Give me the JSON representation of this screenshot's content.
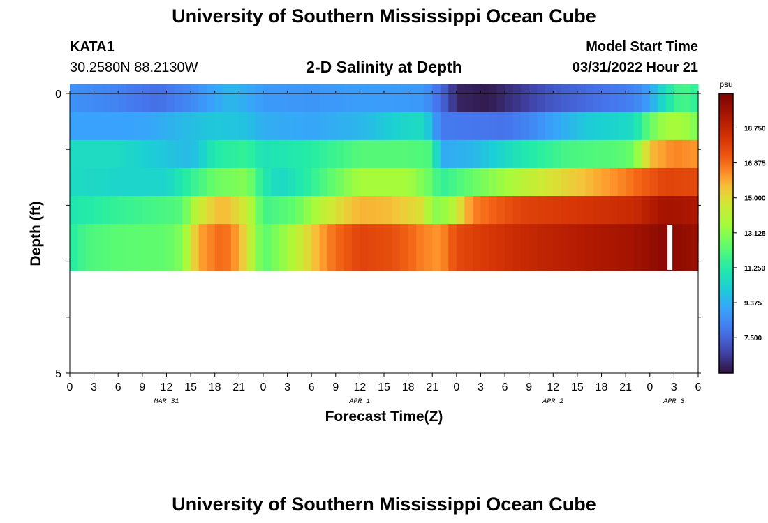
{
  "header": {
    "title": "University of Southern Mississippi Ocean Cube",
    "station_name": "KATA1",
    "coordinates": "30.2580N  88.2130W",
    "subtitle": "2-D Salinity at Depth",
    "model_start_label": "Model Start Time",
    "model_start_value": "03/31/2022 Hour 21"
  },
  "footer": {
    "title": "University of Southern Mississippi Ocean Cube"
  },
  "chart_data": {
    "type": "heatmap",
    "title": "2-D Salinity at Depth",
    "xlabel": "Forecast Time(Z)",
    "ylabel": "Depth (ft)",
    "xlim": [
      0,
      78
    ],
    "ylim": [
      0,
      5
    ],
    "y_tick_labels": [
      "0",
      "5"
    ],
    "x_tick_labels": [
      "0",
      "3",
      "6",
      "9",
      "12",
      "15",
      "18",
      "21",
      "0",
      "3",
      "6",
      "9",
      "12",
      "15",
      "18",
      "21",
      "0",
      "3",
      "6",
      "9",
      "12",
      "15",
      "18",
      "21",
      "0",
      "3",
      "6"
    ],
    "date_labels": [
      {
        "label": "MAR 31",
        "hour": 12
      },
      {
        "label": "APR 1",
        "hour": 36
      },
      {
        "label": "APR 2",
        "hour": 60
      },
      {
        "label": "APR 3",
        "hour": 75
      }
    ],
    "colorbar": {
      "unit": "psu",
      "min": 5.6,
      "max": 20.6,
      "tick_labels": [
        "7.500",
        "9.375",
        "11.250",
        "13.125",
        "15.000",
        "16.875",
        "18.750"
      ]
    },
    "rows": [
      {
        "depth": 0.25,
        "keys": [
          [
            0,
            8.6
          ],
          [
            5,
            8.3
          ],
          [
            11,
            7.7
          ],
          [
            16,
            8.6
          ],
          [
            20,
            9.6
          ],
          [
            24,
            8.8
          ],
          [
            30,
            8.7
          ],
          [
            36,
            8.9
          ],
          [
            44,
            8.8
          ],
          [
            47,
            7.0
          ],
          [
            48,
            6.0
          ],
          [
            52,
            5.8
          ],
          [
            56,
            6.5
          ],
          [
            60,
            7.2
          ],
          [
            66,
            7.8
          ],
          [
            70,
            8.2
          ],
          [
            72,
            9.0
          ],
          [
            73,
            10.0
          ],
          [
            75,
            11.5
          ],
          [
            76,
            12.0
          ],
          [
            78,
            11.4
          ]
        ]
      },
      {
        "depth": 0.75,
        "keys": [
          [
            0,
            9.0
          ],
          [
            6,
            9.0
          ],
          [
            10,
            9.1
          ],
          [
            14,
            9.6
          ],
          [
            18,
            10.0
          ],
          [
            22,
            9.8
          ],
          [
            24,
            9.3
          ],
          [
            30,
            9.1
          ],
          [
            36,
            9.5
          ],
          [
            42,
            10.5
          ],
          [
            44,
            10.6
          ],
          [
            45,
            9.3
          ],
          [
            46,
            8.0
          ],
          [
            54,
            7.8
          ],
          [
            58,
            8.5
          ],
          [
            64,
            10.0
          ],
          [
            70,
            10.6
          ],
          [
            72,
            12.5
          ],
          [
            74,
            13.6
          ],
          [
            76,
            13.6
          ],
          [
            78,
            12.8
          ]
        ]
      },
      {
        "depth": 1.25,
        "keys": [
          [
            0,
            10.6
          ],
          [
            6,
            10.6
          ],
          [
            12,
            9.9
          ],
          [
            15,
            9.6
          ],
          [
            16,
            10.0
          ],
          [
            18,
            11.2
          ],
          [
            22,
            11.6
          ],
          [
            24,
            10.8
          ],
          [
            26,
            11.0
          ],
          [
            30,
            11.3
          ],
          [
            36,
            12.2
          ],
          [
            42,
            12.2
          ],
          [
            45,
            12.0
          ],
          [
            46,
            9.2
          ],
          [
            50,
            9.5
          ],
          [
            56,
            11.0
          ],
          [
            62,
            12.0
          ],
          [
            68,
            12.2
          ],
          [
            70,
            12.6
          ],
          [
            72,
            15.6
          ],
          [
            75,
            16.5
          ],
          [
            78,
            16.2
          ]
        ]
      },
      {
        "depth": 1.75,
        "keys": [
          [
            0,
            10.6
          ],
          [
            6,
            10.4
          ],
          [
            12,
            10.4
          ],
          [
            15,
            11.5
          ],
          [
            18,
            12.6
          ],
          [
            22,
            13.0
          ],
          [
            24,
            11.2
          ],
          [
            26,
            10.4
          ],
          [
            30,
            11.5
          ],
          [
            36,
            13.6
          ],
          [
            42,
            13.6
          ],
          [
            45,
            12.4
          ],
          [
            46,
            11.5
          ],
          [
            52,
            13.0
          ],
          [
            58,
            14.5
          ],
          [
            64,
            15.6
          ],
          [
            70,
            16.8
          ],
          [
            74,
            17.8
          ],
          [
            78,
            17.6
          ]
        ]
      },
      {
        "depth": 2.25,
        "keys": [
          [
            0,
            11.0
          ],
          [
            6,
            11.6
          ],
          [
            12,
            12.0
          ],
          [
            14,
            12.2
          ],
          [
            16,
            14.5
          ],
          [
            19,
            15.8
          ],
          [
            22,
            14.5
          ],
          [
            24,
            11.8
          ],
          [
            28,
            12.4
          ],
          [
            32,
            14.5
          ],
          [
            36,
            15.8
          ],
          [
            40,
            15.6
          ],
          [
            44,
            14.8
          ],
          [
            45,
            13.0
          ],
          [
            47,
            13.5
          ],
          [
            50,
            16.5
          ],
          [
            56,
            17.8
          ],
          [
            64,
            18.2
          ],
          [
            70,
            18.6
          ],
          [
            74,
            19.6
          ],
          [
            78,
            19.3
          ]
        ]
      },
      {
        "depth": 2.75,
        "keys": [
          [
            0,
            11.2
          ],
          [
            2,
            12.0
          ],
          [
            6,
            12.3
          ],
          [
            12,
            12.4
          ],
          [
            14,
            13.0
          ],
          [
            16,
            16.0
          ],
          [
            19,
            17.0
          ],
          [
            21,
            16.0
          ],
          [
            23,
            13.5
          ],
          [
            24,
            12.2
          ],
          [
            27,
            13.5
          ],
          [
            32,
            16.5
          ],
          [
            36,
            17.8
          ],
          [
            40,
            17.5
          ],
          [
            44,
            16.5
          ],
          [
            46,
            16.2
          ],
          [
            48,
            17.6
          ],
          [
            56,
            18.6
          ],
          [
            64,
            19.2
          ],
          [
            70,
            19.6
          ],
          [
            74,
            20.2
          ],
          [
            78,
            19.8
          ]
        ]
      }
    ],
    "missing_cells": [
      {
        "depth": 2.75,
        "hour": 74.5
      }
    ]
  }
}
